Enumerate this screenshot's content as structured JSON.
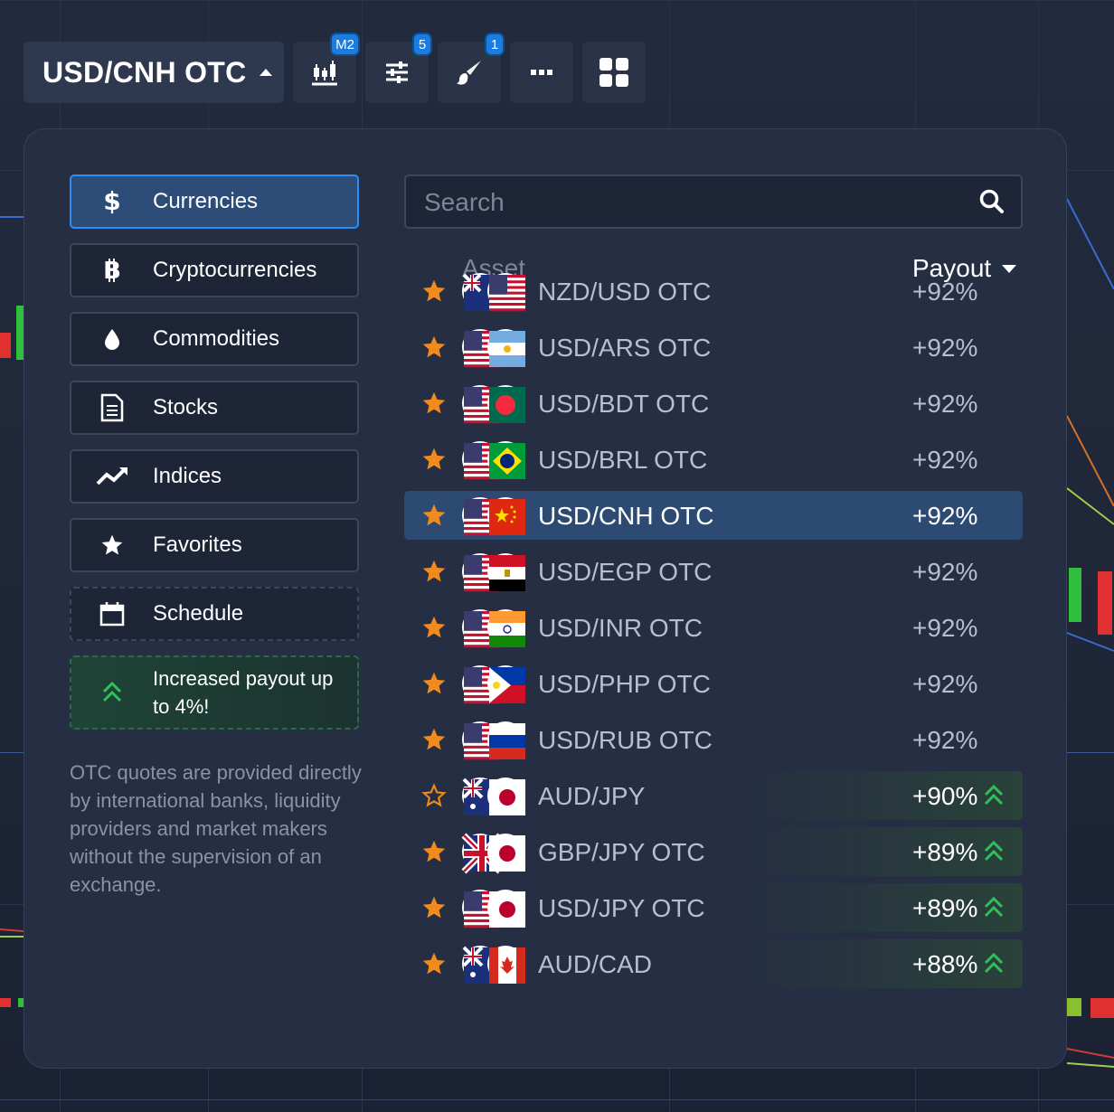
{
  "toolbar": {
    "asset_label": "USD/CNH OTC",
    "chart_type_badge": "M2",
    "indicators_badge": "5",
    "drawings_badge": "1"
  },
  "categories": [
    {
      "label": "Currencies",
      "icon": "dollar-icon",
      "active": true
    },
    {
      "label": "Cryptocurrencies",
      "icon": "bitcoin-icon"
    },
    {
      "label": "Commodities",
      "icon": "drop-icon"
    },
    {
      "label": "Stocks",
      "icon": "document-icon"
    },
    {
      "label": "Indices",
      "icon": "trend-icon"
    },
    {
      "label": "Favorites",
      "icon": "star-icon"
    },
    {
      "label": "Schedule",
      "icon": "calendar-icon"
    }
  ],
  "promo": {
    "label": "Increased payout up to 4%!"
  },
  "note": "OTC quotes are provided directly by international banks, liquidity providers and market makers without the supervision of an exchange.",
  "search": {
    "placeholder": "Search"
  },
  "table": {
    "asset_header": "Asset",
    "payout_header": "Payout"
  },
  "assets": [
    {
      "name": "NZD/USD OTC",
      "payout": "+92%",
      "favorite": true
    },
    {
      "name": "USD/ARS OTC",
      "payout": "+92%",
      "favorite": true
    },
    {
      "name": "USD/BDT OTC",
      "payout": "+92%",
      "favorite": true
    },
    {
      "name": "USD/BRL OTC",
      "payout": "+92%",
      "favorite": true
    },
    {
      "name": "USD/CNH OTC",
      "payout": "+92%",
      "favorite": true,
      "selected": true
    },
    {
      "name": "USD/EGP OTC",
      "payout": "+92%",
      "favorite": true
    },
    {
      "name": "USD/INR OTC",
      "payout": "+92%",
      "favorite": true
    },
    {
      "name": "USD/PHP OTC",
      "payout": "+92%",
      "favorite": true
    },
    {
      "name": "USD/RUB OTC",
      "payout": "+92%",
      "favorite": true
    },
    {
      "name": "AUD/JPY",
      "payout": "+90%",
      "favorite": false,
      "boost": true
    },
    {
      "name": "GBP/JPY OTC",
      "payout": "+89%",
      "favorite": true,
      "boost": true
    },
    {
      "name": "USD/JPY OTC",
      "payout": "+89%",
      "favorite": true,
      "boost": true
    },
    {
      "name": "AUD/CAD",
      "payout": "+88%",
      "favorite": true,
      "boost": true
    }
  ],
  "colors": {
    "accent": "#2f8cf0",
    "star": "#f28b1e",
    "boost": "#2fbf5b"
  }
}
